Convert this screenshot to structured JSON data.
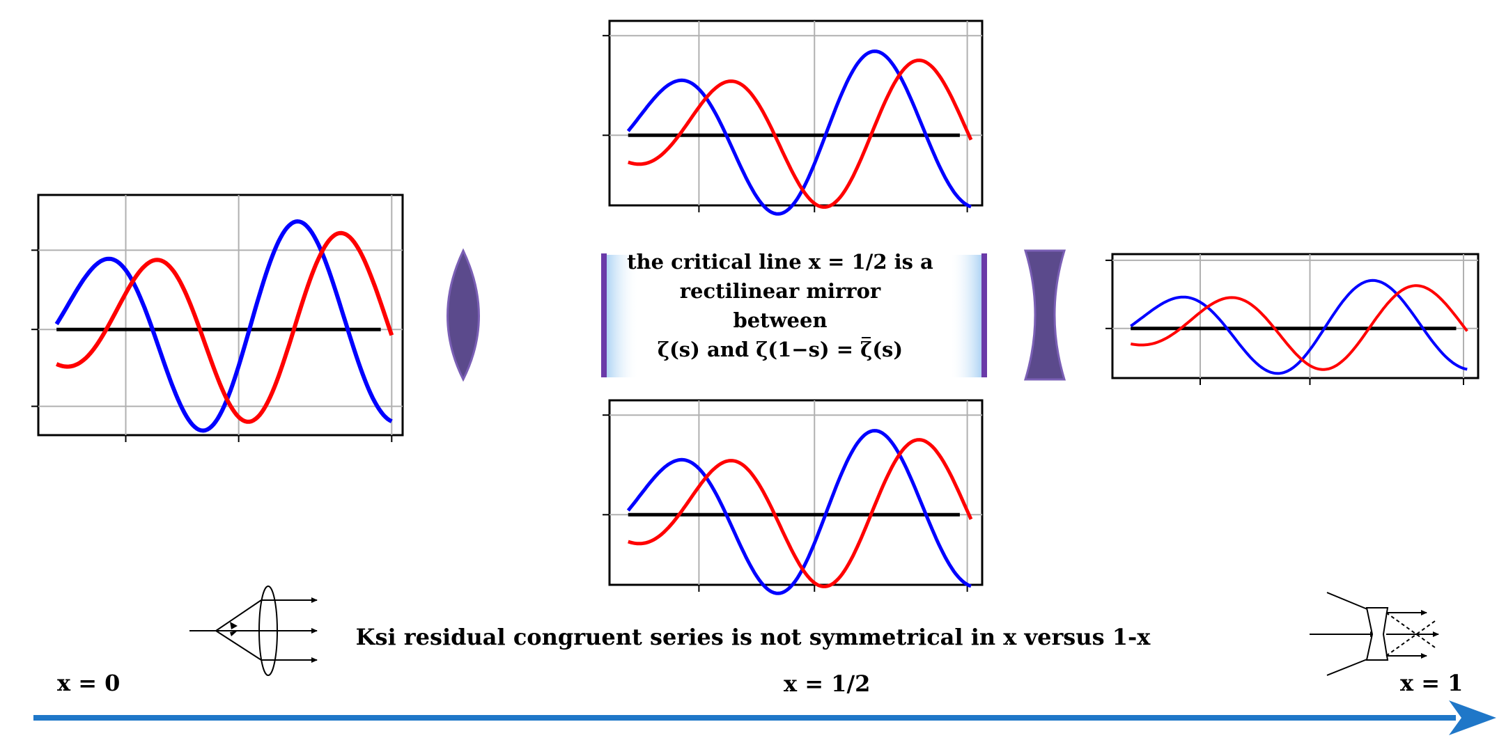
{
  "center_text": {
    "line1": "the critical line x = 1/2 is a",
    "line2": "rectilinear mirror",
    "line3": "between",
    "line4_prefix": "ζ(s) and ζ(1−s) = ",
    "line4_zbar": "ζ",
    "line4_suffix": "(s)"
  },
  "bottom_caption": "Ksi residual congruent series is not symmetrical in x versus 1-x",
  "axis_labels": {
    "x0": "x = 0",
    "xhalf": "x = 1/2",
    "x1": "x = 1"
  },
  "colors": {
    "blue_curve": "#0000ff",
    "red_curve": "#ff0000",
    "lens": "#5b4a8c",
    "mirror_bar": "#6a3aa8",
    "arrow": "#1f77c8",
    "grid": "#b0b0b0"
  },
  "icons": {
    "convex_lens": "convex-lens-icon",
    "concave_lens": "concave-lens-icon",
    "converging_rays": "converging-lens-ray-diagram-icon",
    "diverging_rays": "diverging-lens-ray-diagram-icon",
    "axis_arrow": "right-arrow-icon"
  }
}
